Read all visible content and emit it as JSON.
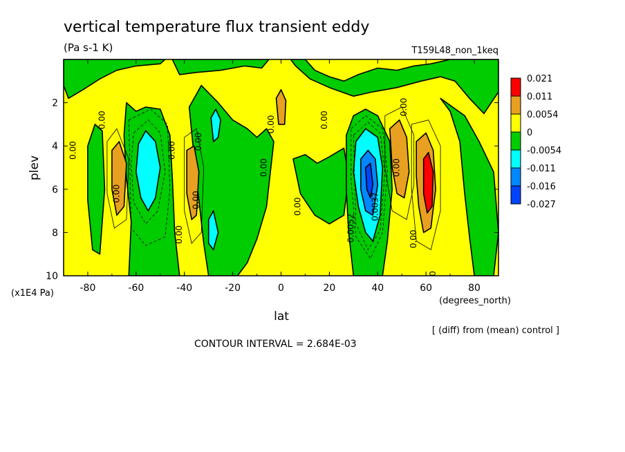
{
  "figure": {
    "title": "vertical temperature flux transient eddy",
    "units": "(Pa s-1 K)",
    "run_label": "T159L48_non_1keq",
    "footer_note": "[ (diff) from (mean) control ]",
    "contour_interval": "CONTOUR INTERVAL = 2.684E-03"
  },
  "chart_data": {
    "type": "heatmap",
    "xlabel": "lat",
    "xunits": "(degrees_north)",
    "ylabel": "plev",
    "yunits": "(x1E4 Pa)",
    "xlim": [
      -90,
      90
    ],
    "ylim": [
      10,
      0
    ],
    "y_inverted": true,
    "xticks": [
      "-80",
      "-60",
      "-40",
      "-20",
      "0",
      "20",
      "40",
      "60",
      "80"
    ],
    "yticks": [
      "2",
      "4",
      "6",
      "8",
      "10"
    ],
    "legend": {
      "placement": "right",
      "labels": [
        "0.021",
        "0.011",
        "0.0054",
        "0",
        "-0.0054",
        "-0.011",
        "-0.016",
        "-0.027"
      ],
      "colors": [
        "#ff0000",
        "#ff0000",
        "#e8a020",
        "#ffff00",
        "#00cc00",
        "#00ffff",
        "#0088ff",
        "#0044ff"
      ]
    },
    "regions": [
      {
        "lat": -85,
        "plev": 1.5,
        "level": "0 to 0.0054"
      },
      {
        "lat": -68,
        "plev": 5.5,
        "level": "0.0054 to 0.011"
      },
      {
        "lat": -55,
        "plev": 5,
        "level": "-0.011 to -0.0054"
      },
      {
        "lat": -36,
        "plev": 5.5,
        "level": "0.0054 to 0.011"
      },
      {
        "lat": -28,
        "plev": 3,
        "level": "-0.011 to -0.0054"
      },
      {
        "lat": 0,
        "plev": 2.5,
        "level": "0.0054 to 0.011"
      },
      {
        "lat": 37,
        "plev": 5.5,
        "level": "-0.016 to -0.011"
      },
      {
        "lat": 50,
        "plev": 4.5,
        "level": "0.0054 to 0.011"
      },
      {
        "lat": 61,
        "plev": 5.7,
        "level": "0.011 to 0.021"
      }
    ],
    "contour_labels": [
      "0.00",
      "0.00",
      "0.00",
      "0.00",
      "0.00",
      "0.00",
      "0.00",
      "0.00",
      "0.00",
      "0.00",
      "0.00",
      "0.0052",
      "0.00",
      "0.00",
      "0.00",
      "0.0037",
      "0.00"
    ]
  }
}
